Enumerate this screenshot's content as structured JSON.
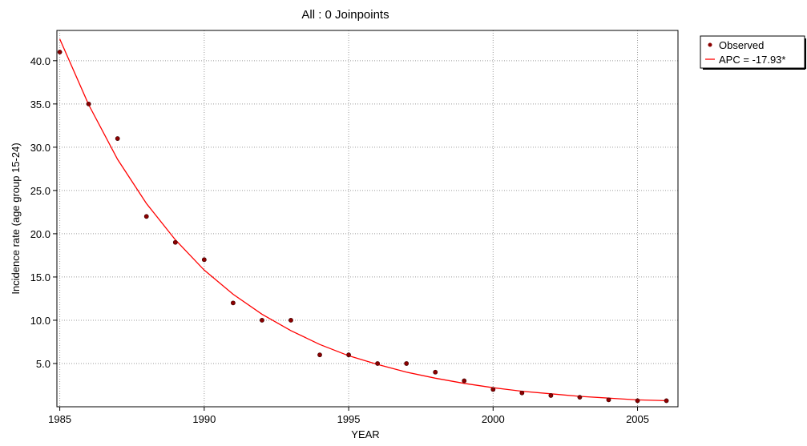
{
  "chart_data": {
    "type": "scatter",
    "title": "All : 0 Joinpoints",
    "xlabel": "YEAR",
    "ylabel": "Incidence rate (age group 15-24)",
    "xlim": [
      1984.9,
      2006.4
    ],
    "ylim": [
      0,
      43.5
    ],
    "x_ticks": [
      "1985",
      "1990",
      "1995",
      "2000",
      "2005"
    ],
    "x_tick_values": [
      1985,
      1990,
      1995,
      2000,
      2005
    ],
    "y_ticks": [
      "5.0",
      "10.0",
      "15.0",
      "20.0",
      "25.0",
      "30.0",
      "35.0",
      "40.0"
    ],
    "y_tick_values": [
      5,
      10,
      15,
      20,
      25,
      30,
      35,
      40
    ],
    "grid": true,
    "legend_position": "right",
    "series": [
      {
        "name": "Observed",
        "kind": "points",
        "color": "#8b0000",
        "x": [
          1985,
          1986,
          1987,
          1988,
          1989,
          1990,
          1991,
          1992,
          1993,
          1994,
          1995,
          1996,
          1997,
          1998,
          1999,
          2000,
          2001,
          2002,
          2003,
          2004,
          2005,
          2006
        ],
        "y": [
          41.0,
          35.0,
          31.0,
          22.0,
          19.0,
          17.0,
          12.0,
          10.0,
          10.0,
          6.0,
          6.0,
          5.0,
          5.0,
          4.0,
          3.0,
          2.0,
          1.6,
          1.3,
          1.1,
          0.8,
          0.7,
          0.7
        ]
      },
      {
        "name": "APC = -17.93*",
        "kind": "line",
        "color": "#ff0000",
        "x": [
          1985,
          1986,
          1987,
          1988,
          1989,
          1990,
          1991,
          1992,
          1993,
          1994,
          1995,
          1996,
          1997,
          1998,
          1999,
          2000,
          2001,
          2002,
          2003,
          2004,
          2005,
          2006
        ],
        "y": [
          42.5,
          34.9,
          28.6,
          23.5,
          19.3,
          15.8,
          13.0,
          10.7,
          8.8,
          7.2,
          5.9,
          4.9,
          4.0,
          3.3,
          2.7,
          2.2,
          1.8,
          1.5,
          1.2,
          1.0,
          0.8,
          0.7
        ]
      }
    ]
  }
}
